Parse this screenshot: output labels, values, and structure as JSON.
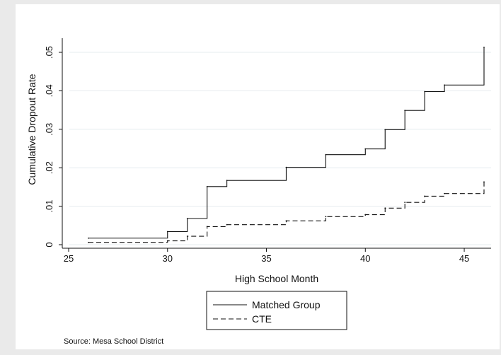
{
  "chart_data": {
    "type": "line",
    "title": "",
    "xlabel": "High School Month",
    "ylabel": "Cumulative Dropout Rate",
    "xlim": [
      25,
      46
    ],
    "ylim": [
      0,
      0.05
    ],
    "x_ticks": [
      25,
      30,
      35,
      40,
      45
    ],
    "x_tick_labels": [
      "25",
      "30",
      "35",
      "40",
      "45"
    ],
    "y_ticks": [
      0,
      0.01,
      0.02,
      0.03,
      0.04,
      0.05
    ],
    "y_tick_labels": [
      "0",
      ".01",
      ".02",
      ".03",
      ".04",
      ".05"
    ],
    "grid": true,
    "step": true,
    "legend_position": "bottom",
    "series": [
      {
        "name": "Matched Group",
        "style": "solid",
        "x": [
          26,
          30,
          31,
          32,
          33,
          36,
          38,
          40,
          41,
          42,
          43,
          44,
          46
        ],
        "y": [
          0.0017,
          0.0034,
          0.0068,
          0.0151,
          0.0167,
          0.0201,
          0.0234,
          0.0249,
          0.0299,
          0.0349,
          0.0398,
          0.0415,
          0.0513
        ]
      },
      {
        "name": "CTE",
        "style": "dashed",
        "x": [
          26,
          30,
          31,
          32,
          33,
          36,
          38,
          40,
          41,
          42,
          43,
          44,
          46
        ],
        "y": [
          0.0006,
          0.001,
          0.0022,
          0.0047,
          0.0052,
          0.0062,
          0.0073,
          0.0078,
          0.0095,
          0.011,
          0.0126,
          0.0133,
          0.0163
        ]
      }
    ],
    "note": "Source: Mesa School District"
  }
}
